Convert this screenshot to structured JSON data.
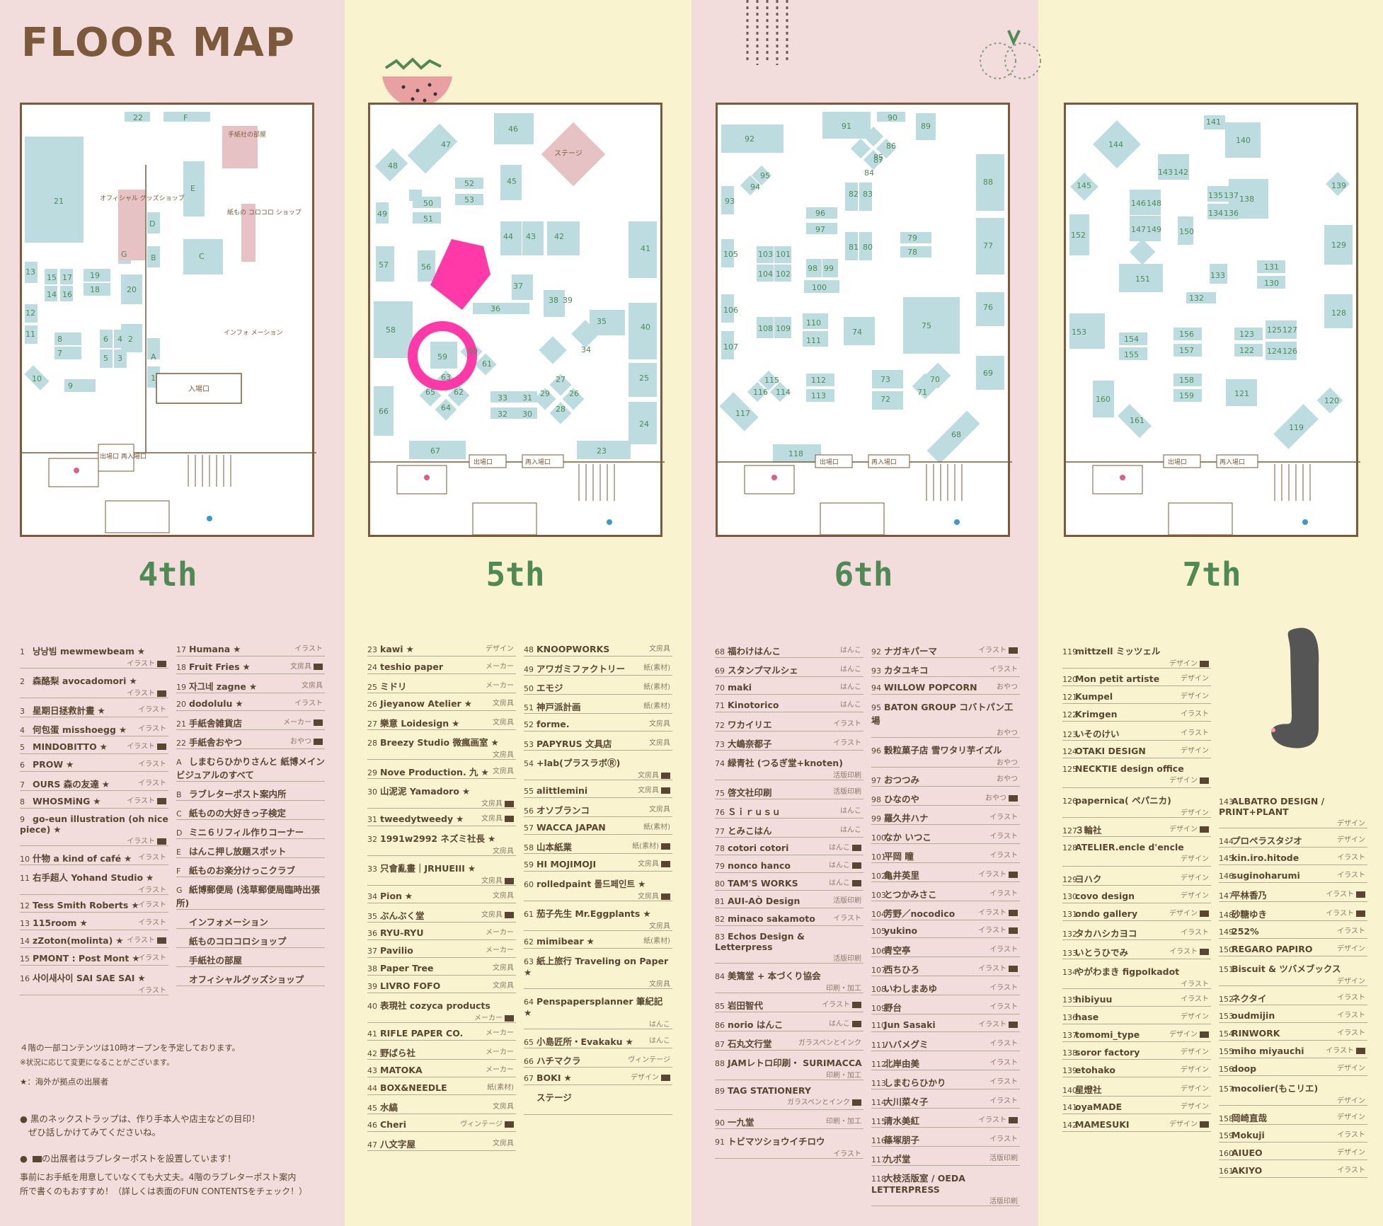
{
  "header": {
    "title": "FLOOR MAP"
  },
  "floors": [
    {
      "label": "4th",
      "bg": "#f3dcdc"
    },
    {
      "label": "5th",
      "bg": "#f9f4cf"
    },
    {
      "label": "6th",
      "bg": "#f3dcdc"
    },
    {
      "label": "7th",
      "bg": "#f9f4cf"
    }
  ],
  "colors": {
    "booth": "#bcdce0",
    "brown": "#7a5a3a",
    "pink_booth": "#e6c2c4",
    "marker": "#ff3aa8",
    "green": "#4f8a55"
  },
  "map_labels": {
    "f4": {
      "office_room": "手紙社の部屋",
      "goods": "オフィシャル グッズショップ",
      "korokoro": "紙もの コロコロ ショップ",
      "info": "インフォ メーション",
      "entrance": "入場口",
      "exit": "出場口 再入場口"
    },
    "f5": {
      "stage": "ステージ",
      "exit": "出場口",
      "reentry": "再入場口"
    },
    "f6": {
      "exit": "出場口",
      "reentry": "再入場口"
    },
    "f7": {
      "exit": "出場口",
      "reentry": "再入場口"
    }
  },
  "lists": {
    "c4a": [
      {
        "n": "1",
        "name": "낭낭빔 mewmewbeam",
        "star": true,
        "cat": "イラスト",
        "mail": true,
        "two": true
      },
      {
        "n": "2",
        "name": "森酪梨 avocadomori",
        "star": true,
        "cat": "イラスト",
        "mail": true,
        "two": true
      },
      {
        "n": "3",
        "name": "星期日拯救計畫",
        "star": true,
        "cat": "イラスト"
      },
      {
        "n": "4",
        "name": "何包蛋 misshoegg",
        "star": true,
        "cat": "イラスト"
      },
      {
        "n": "5",
        "name": "MINDOBITTO",
        "star": true,
        "cat": "イラスト",
        "mail": true
      },
      {
        "n": "6",
        "name": "PROW",
        "star": true,
        "cat": "イラスト"
      },
      {
        "n": "7",
        "name": "OURS 森の友達",
        "star": true,
        "cat": "イラスト"
      },
      {
        "n": "8",
        "name": "WHOSMiNG",
        "star": true,
        "cat": "イラスト",
        "mail": true
      },
      {
        "n": "9",
        "name": "go-eun illustration (oh nice piece)",
        "star": true,
        "cat": "イラスト",
        "mail": true,
        "two": true
      },
      {
        "n": "10",
        "name": "什物 a kind of café",
        "star": true,
        "cat": "イラスト"
      },
      {
        "n": "11",
        "name": "右手超人 Yohand Studio",
        "star": true,
        "cat": "イラスト",
        "two": true
      },
      {
        "n": "12",
        "name": "Tess Smith Roberts",
        "star": true,
        "cat": "イラスト"
      },
      {
        "n": "13",
        "name": "115room",
        "star": true,
        "cat": "イラスト"
      },
      {
        "n": "14",
        "name": "zZoton(molinta)",
        "star": true,
        "cat": "イラスト",
        "mail": true
      },
      {
        "n": "15",
        "name": "PMONT : Post Mont",
        "star": true,
        "cat": "イラスト"
      },
      {
        "n": "16",
        "name": "사이새사이 SAI SAE SAI",
        "star": true,
        "cat": "イラスト",
        "two": true
      }
    ],
    "c4b": [
      {
        "n": "17",
        "name": "Humana",
        "star": true,
        "cat": "イラスト"
      },
      {
        "n": "18",
        "name": "Fruit Fries",
        "star": true,
        "cat": "文房具",
        "mail": true
      },
      {
        "n": "19",
        "name": "자그네 zagne",
        "star": true,
        "cat": "文房具"
      },
      {
        "n": "20",
        "name": "dodolulu",
        "star": true,
        "cat": "イラスト"
      },
      {
        "n": "21",
        "name": "手紙舎雑貨店",
        "cat": "メーカー",
        "mail": true
      },
      {
        "n": "22",
        "name": "手紙舎おやつ",
        "cat": "おやつ",
        "mail": true
      },
      {
        "n": "A",
        "name": "しまむらひかりさんと 紙博メインビジュアルのすべて",
        "two": true
      },
      {
        "n": "B",
        "name": "ラブレターポスト案内所"
      },
      {
        "n": "C",
        "name": "紙ものの大好きっ子検定"
      },
      {
        "n": "D",
        "name": "ミニ６リフィル作りコーナー"
      },
      {
        "n": "E",
        "name": "はんこ押し放題スポット"
      },
      {
        "n": "F",
        "name": "紙ものお楽分けっこクラブ"
      },
      {
        "n": "G",
        "name": "紙博郵便局 (浅草郵便局臨時出張所)",
        "two": true
      },
      {
        "n": "",
        "name": "インフォメーション"
      },
      {
        "n": "",
        "name": "紙ものコロコロショップ"
      },
      {
        "n": "",
        "name": "手紙社の部屋"
      },
      {
        "n": "",
        "name": "オフィシャルグッズショップ"
      }
    ],
    "c5a": [
      {
        "n": "23",
        "name": "kawi",
        "star": true,
        "cat": "デザイン"
      },
      {
        "n": "24",
        "name": "teshio paper",
        "cat": "メーカー"
      },
      {
        "n": "25",
        "name": "ミドリ",
        "cat": "メーカー"
      },
      {
        "n": "26",
        "name": "Jieyanow Atelier",
        "star": true,
        "cat": "文房具"
      },
      {
        "n": "27",
        "name": "樂意 Loidesign",
        "star": true,
        "cat": "文房具"
      },
      {
        "n": "28",
        "name": "Breezy Studio 微瘋画室",
        "star": true,
        "cat": "文房具",
        "two": true
      },
      {
        "n": "29",
        "name": "Nove Production. 九",
        "star": true,
        "cat": "文房具"
      },
      {
        "n": "30",
        "name": "山泥泥 Yamadoro",
        "star": true,
        "cat": "文房具",
        "mail": true,
        "two": true
      },
      {
        "n": "31",
        "name": "tweedytweedy",
        "star": true,
        "cat": "文房具",
        "mail": true
      },
      {
        "n": "32",
        "name": "1991w2992 ネズミ社長",
        "star": true,
        "cat": "文房具",
        "two": true
      },
      {
        "n": "33",
        "name": "只會亂畫｜JRHUEIII",
        "star": true,
        "cat": "文房具",
        "mail": true,
        "two": true
      },
      {
        "n": "34",
        "name": "Pion",
        "star": true,
        "cat": "文房具"
      },
      {
        "n": "35",
        "name": "ぶんぶく堂",
        "cat": "文房具",
        "mail": true
      },
      {
        "n": "36",
        "name": "RYU-RYU",
        "cat": "メーカー"
      },
      {
        "n": "37",
        "name": "Pavilio",
        "cat": "メーカー"
      },
      {
        "n": "38",
        "name": "Paper Tree",
        "cat": "文房具"
      },
      {
        "n": "39",
        "name": "LIVRO FOFO",
        "cat": "文房具"
      },
      {
        "n": "40",
        "name": "表現社 cozyca products",
        "cat": "メーカー",
        "mail": true,
        "two": true
      },
      {
        "n": "41",
        "name": "RIFLE PAPER CO.",
        "cat": "メーカー"
      },
      {
        "n": "42",
        "name": "野ばら社",
        "cat": "メーカー"
      },
      {
        "n": "43",
        "name": "MATOKA",
        "cat": "メーカー"
      },
      {
        "n": "44",
        "name": "BOX&NEEDLE",
        "cat": "紙(素材)"
      },
      {
        "n": "45",
        "name": "水縞",
        "cat": "文房具"
      },
      {
        "n": "46",
        "name": "Cheri",
        "cat": "ヴィンテージ",
        "mail": true
      },
      {
        "n": "47",
        "name": "八文字屋",
        "cat": "文房具"
      }
    ],
    "c5b": [
      {
        "n": "48",
        "name": "KNOOPWORKS",
        "cat": "文房具"
      },
      {
        "n": "49",
        "name": "アワガミファクトリー",
        "cat": "紙(素材)"
      },
      {
        "n": "50",
        "name": "エモジ",
        "cat": "紙(素材)"
      },
      {
        "n": "51",
        "name": "神戸派計画",
        "cat": "紙(素材)"
      },
      {
        "n": "52",
        "name": "forme.",
        "cat": "文房具"
      },
      {
        "n": "53",
        "name": "PAPYRUS 文具店",
        "cat": "文房具"
      },
      {
        "n": "54",
        "name": "+lab(プラスラボⓇ)",
        "cat": "文房具",
        "mail": true,
        "two": true
      },
      {
        "n": "55",
        "name": "alittlemini",
        "cat": "文房具",
        "mail": true
      },
      {
        "n": "56",
        "name": "オソブランコ",
        "cat": "文房具"
      },
      {
        "n": "57",
        "name": "WACCA JAPAN",
        "cat": "紙(素材)"
      },
      {
        "n": "58",
        "name": "山本紙業",
        "cat": "紙(素材)",
        "mail": true
      },
      {
        "n": "59",
        "name": "HI MOJIMOJI",
        "cat": "文房具",
        "mail": true
      },
      {
        "n": "60",
        "name": "rolledpaint 롤드페인트",
        "star": true,
        "cat": "文房具",
        "mail": true,
        "two": true
      },
      {
        "n": "61",
        "name": "茄子先生 Mr.Eggplants",
        "star": true,
        "cat": "文房具",
        "two": true
      },
      {
        "n": "62",
        "name": "mimibear",
        "star": true,
        "cat": "紙(素材)"
      },
      {
        "n": "63",
        "name": "紙上旅行 Traveling on Paper",
        "star": true,
        "cat": "文房具",
        "two": true
      },
      {
        "n": "64",
        "name": "Penspapersplanner 筆紀記",
        "star": true,
        "cat": "はんこ",
        "two": true
      },
      {
        "n": "65",
        "name": "小島匠所・Evakaku",
        "star": true,
        "cat": "はんこ"
      },
      {
        "n": "66",
        "name": "ハチマクラ",
        "cat": "ヴィンテージ"
      },
      {
        "n": "67",
        "name": "BOKI",
        "star": true,
        "cat": "デザイン",
        "mail": true
      },
      {
        "n": "",
        "name": "ステージ",
        "two": true
      }
    ],
    "c6a": [
      {
        "n": "68",
        "name": "福わけはんこ",
        "cat": "はんこ"
      },
      {
        "n": "69",
        "name": "スタンプマルシェ",
        "cat": "はんこ"
      },
      {
        "n": "70",
        "name": "maki",
        "cat": "はんこ"
      },
      {
        "n": "71",
        "name": "Kinotorico",
        "cat": "はんこ"
      },
      {
        "n": "72",
        "name": "ワカイリエ",
        "cat": "イラスト"
      },
      {
        "n": "73",
        "name": "大嶋奈都子",
        "cat": "イラスト"
      },
      {
        "n": "74",
        "name": "緑青社 (つるぎ堂+knoten)",
        "cat": "活版印刷",
        "two": true
      },
      {
        "n": "75",
        "name": "啓文社印刷",
        "cat": "活版印刷"
      },
      {
        "n": "76",
        "name": "Ｓｉｒｕｓｕ",
        "cat": "はんこ"
      },
      {
        "n": "77",
        "name": "とみこはん",
        "cat": "はんこ"
      },
      {
        "n": "78",
        "name": "cotori cotori",
        "cat": "はんこ",
        "mail": true
      },
      {
        "n": "79",
        "name": "nonco hanco",
        "cat": "はんこ",
        "mail": true
      },
      {
        "n": "80",
        "name": "TAM'S WORKS",
        "cat": "はんこ",
        "mail": true
      },
      {
        "n": "81",
        "name": "AUI-AÒ Design",
        "cat": "活版印刷"
      },
      {
        "n": "82",
        "name": "minaco sakamoto",
        "cat": "イラスト"
      },
      {
        "n": "83",
        "name": "Echos Design & Letterpress",
        "cat": "活版印刷",
        "two": true
      },
      {
        "n": "84",
        "name": "美篶堂 + 本づくり協会",
        "cat": "印刷・加工",
        "two": true
      },
      {
        "n": "85",
        "name": "岩田智代",
        "cat": "イラスト",
        "mail": true
      },
      {
        "n": "86",
        "name": "norio はんこ",
        "cat": "はんこ",
        "mail": true
      },
      {
        "n": "87",
        "name": "石丸文行堂",
        "cat": "ガラスペンとインク"
      },
      {
        "n": "88",
        "name": "JAMレトロ印刷・ SURIMACCA",
        "cat": "印刷・加工",
        "two": true
      },
      {
        "n": "89",
        "name": "TAG STATIONERY",
        "cat": "ガラスペンとインク",
        "mail": true,
        "two": true
      },
      {
        "n": "90",
        "name": "一九堂",
        "cat": "印刷・加工"
      },
      {
        "n": "91",
        "name": "トビマツショウイチロウ",
        "cat": "イラスト",
        "two": true
      }
    ],
    "c6b": [
      {
        "n": "92",
        "name": "ナガキパーマ",
        "cat": "イラスト",
        "mail": true
      },
      {
        "n": "93",
        "name": "カタユキコ",
        "cat": "イラスト"
      },
      {
        "n": "94",
        "name": "WILLOW POPCORN",
        "cat": "おやつ"
      },
      {
        "n": "95",
        "name": "BATON GROUP コバトパン工場",
        "cat": "おやつ",
        "two": true
      },
      {
        "n": "96",
        "name": "穀粒菓子店 雪ワタリ芋イズル",
        "cat": "おやつ",
        "two": true
      },
      {
        "n": "97",
        "name": "おつつみ",
        "cat": "おやつ"
      },
      {
        "n": "98",
        "name": "ひなのや",
        "cat": "おやつ",
        "mail": true
      },
      {
        "n": "99",
        "name": "羅久井ハナ",
        "cat": "イラスト"
      },
      {
        "n": "100",
        "name": "なか いつこ",
        "cat": "イラスト"
      },
      {
        "n": "101",
        "name": "平岡 瞳",
        "cat": "イラスト"
      },
      {
        "n": "102",
        "name": "亀井英里",
        "cat": "イラスト",
        "mail": true
      },
      {
        "n": "103",
        "name": "とつかみさこ",
        "cat": "イラスト"
      },
      {
        "n": "104",
        "name": "芳野／nocodico",
        "cat": "イラスト",
        "mail": true
      },
      {
        "n": "105",
        "name": "yukino",
        "cat": "イラスト",
        "mail": true
      },
      {
        "n": "106",
        "name": "青空亭",
        "cat": "イラスト"
      },
      {
        "n": "107",
        "name": "西ちひろ",
        "cat": "イラスト",
        "mail": true
      },
      {
        "n": "108",
        "name": "いわしまあゆ",
        "cat": "イラスト"
      },
      {
        "n": "109",
        "name": "野台",
        "cat": "イラスト"
      },
      {
        "n": "110",
        "name": "Jun Sasaki",
        "cat": "イラスト",
        "mail": true
      },
      {
        "n": "111",
        "name": "ハバメグミ",
        "cat": "イラスト"
      },
      {
        "n": "112",
        "name": "北岸由美",
        "cat": "イラスト"
      },
      {
        "n": "113",
        "name": "しまむらひかり",
        "cat": "イラスト"
      },
      {
        "n": "114",
        "name": "大川菜々子",
        "cat": "イラスト"
      },
      {
        "n": "115",
        "name": "清水美紅",
        "cat": "イラスト",
        "mail": true
      },
      {
        "n": "116",
        "name": "篠塚朋子",
        "cat": "イラスト"
      },
      {
        "n": "117",
        "name": "九ポ堂",
        "cat": "活版印刷"
      },
      {
        "n": "118",
        "name": "大枝活版室 / OEDA LETTERPRESS",
        "cat": "活版印刷",
        "two": true
      }
    ],
    "c7a": [
      {
        "n": "119",
        "name": "mittzell ミッツェル",
        "cat": "デザイン",
        "mail": true,
        "two": true
      },
      {
        "n": "120",
        "name": "Mon petit artiste",
        "cat": "デザイン"
      },
      {
        "n": "121",
        "name": "Kumpel",
        "cat": "デザイン"
      },
      {
        "n": "122",
        "name": "Krimgen",
        "cat": "イラスト"
      },
      {
        "n": "123",
        "name": "いそのけい",
        "cat": "イラスト"
      },
      {
        "n": "124",
        "name": "OTAKI DESIGN",
        "cat": "デザイン"
      },
      {
        "n": "125",
        "name": "NECKTIE design office",
        "cat": "デザイン",
        "mail": true,
        "two": true
      },
      {
        "n": "126",
        "name": "papernica( ペパニカ)",
        "cat": "デザイン",
        "two": true
      },
      {
        "n": "127",
        "name": "３輪社",
        "cat": "デザイン",
        "mail": true
      },
      {
        "n": "128",
        "name": "ATELIER.encle d'encle",
        "cat": "デザイン",
        "two": true
      },
      {
        "n": "129",
        "name": "ヨハク",
        "cat": "デザイン"
      },
      {
        "n": "130",
        "name": "covo design",
        "cat": "デザイン"
      },
      {
        "n": "131",
        "name": "ondo gallery",
        "cat": "デザイン",
        "mail": true
      },
      {
        "n": "132",
        "name": "タカハシカヨコ",
        "cat": "イラスト"
      },
      {
        "n": "133",
        "name": "いとうひでみ",
        "cat": "イラスト",
        "mail": true
      },
      {
        "n": "134",
        "name": "やがわまき figpolkadot",
        "cat": "イラスト",
        "two": true
      },
      {
        "n": "135",
        "name": "hibiyuu",
        "cat": "イラスト"
      },
      {
        "n": "136",
        "name": "hase",
        "cat": "デザイン"
      },
      {
        "n": "137",
        "name": "tomomi_type",
        "cat": "デザイン",
        "mail": true
      },
      {
        "n": "138",
        "name": "soror factory",
        "cat": "デザイン"
      },
      {
        "n": "139",
        "name": "etohako",
        "cat": "デザイン"
      },
      {
        "n": "140",
        "name": "星燈社",
        "cat": "デザイン"
      },
      {
        "n": "141",
        "name": "oyaMADE",
        "cat": "デザイン"
      },
      {
        "n": "142",
        "name": "MAMESUKI",
        "cat": "デザイン",
        "mail": true
      }
    ],
    "c7b": [
      {
        "n": "143",
        "name": "ALBATRO DESIGN / PRINT+PLANT",
        "cat": "デザイン",
        "two": true
      },
      {
        "n": "144",
        "name": "プロペラスタジオ",
        "cat": "デザイン"
      },
      {
        "n": "145",
        "name": "kin.iro.hitode",
        "cat": "イラスト"
      },
      {
        "n": "146",
        "name": "suginoharumi",
        "cat": "イラスト"
      },
      {
        "n": "147",
        "name": "平林香乃",
        "cat": "イラスト",
        "mail": true
      },
      {
        "n": "148",
        "name": "砂糖ゆき",
        "cat": "イラスト",
        "mail": true
      },
      {
        "n": "149",
        "name": "252%",
        "cat": "イラスト"
      },
      {
        "n": "150",
        "name": "REGARO PAPIRO",
        "cat": "デザイン"
      },
      {
        "n": "151",
        "name": "Biscuit & ツバメブックス",
        "cat": "デザイン",
        "two": true
      },
      {
        "n": "152",
        "name": "ネクタイ",
        "cat": "イラスト"
      },
      {
        "n": "153",
        "name": "oudmijin",
        "cat": "イラスト"
      },
      {
        "n": "154",
        "name": "RINWORK",
        "cat": "イラスト"
      },
      {
        "n": "155",
        "name": "miho miyauchi",
        "cat": "イラスト",
        "mail": true
      },
      {
        "n": "156",
        "name": "doop",
        "cat": "デザイン"
      },
      {
        "n": "157",
        "name": "mocolier(もこリエ)",
        "cat": "デザイン",
        "two": true
      },
      {
        "n": "158",
        "name": "岡崎直哉",
        "cat": "デザイン"
      },
      {
        "n": "159",
        "name": "Mokuji",
        "cat": "イラスト"
      },
      {
        "n": "160",
        "name": "AIUEO",
        "cat": "デザイン"
      },
      {
        "n": "161",
        "name": "AKIYO",
        "cat": "イラスト"
      }
    ]
  },
  "notes": {
    "open": "４階の一部コンテンツは10時オープンを予定しております。",
    "change": "※状況に応じて変更になることがございます。",
    "star": "★：海外が拠点の出展者",
    "strap1": "黒のネックストラップは、作り手本人や店主などの目印！",
    "strap2": "ぜひ話しかけてみてくださいね。",
    "post": "の出展者はラブレターポストを設置しています！",
    "post2": "事前にお手紙を用意していなくても大丈夫。4階のラブレターポスト案内",
    "post3": "所で書くのもおすすめ！（詳しくは表面のFUN CONTENTSをチェック！）"
  }
}
